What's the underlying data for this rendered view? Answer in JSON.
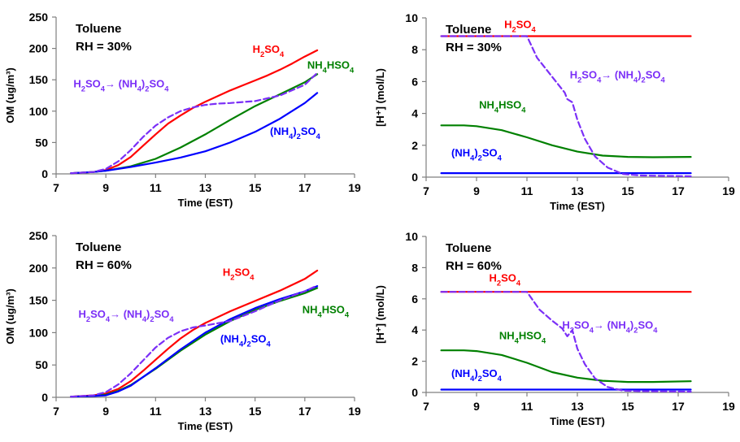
{
  "colors": {
    "h2so4": "#ff0000",
    "nh4hso4": "#008000",
    "nh42so4": "#0000ff",
    "transition": "#7b2ff7",
    "axis": "#7f7f7f",
    "text": "#000000"
  },
  "chart_data": [
    {
      "type": "line",
      "panel": "top-left",
      "title_lines": [
        "Toluene",
        "RH = 30%"
      ],
      "xlabel": "Time (EST)",
      "ylabel": "OM (ug/m³)",
      "xlim": [
        7,
        19
      ],
      "ylim": [
        0,
        250
      ],
      "xticks": [
        7,
        9,
        11,
        13,
        15,
        17,
        19
      ],
      "yticks": [
        0,
        50,
        100,
        150,
        200,
        250
      ],
      "grid": false,
      "series": [
        {
          "name": "H2SO4",
          "color_key": "h2so4",
          "dashed": false,
          "points": [
            [
              7.6,
              1
            ],
            [
              8.5,
              3
            ],
            [
              9,
              6
            ],
            [
              9.5,
              14
            ],
            [
              10,
              27
            ],
            [
              10.5,
              45
            ],
            [
              11,
              63
            ],
            [
              11.5,
              80
            ],
            [
              12,
              93
            ],
            [
              12.5,
              105
            ],
            [
              13,
              115
            ],
            [
              13.5,
              124
            ],
            [
              14,
              133
            ],
            [
              14.5,
              141
            ],
            [
              15,
              149
            ],
            [
              15.5,
              157
            ],
            [
              16,
              166
            ],
            [
              16.5,
              176
            ],
            [
              17,
              187
            ],
            [
              17.5,
              197
            ]
          ]
        },
        {
          "name": "NH4HSO4",
          "color_key": "nh4hso4",
          "dashed": false,
          "points": [
            [
              7.6,
              1
            ],
            [
              8.5,
              3
            ],
            [
              9,
              5
            ],
            [
              10,
              12
            ],
            [
              11,
              24
            ],
            [
              12,
              42
            ],
            [
              13,
              63
            ],
            [
              14,
              86
            ],
            [
              15,
              108
            ],
            [
              16,
              127
            ],
            [
              17,
              146
            ],
            [
              17.5,
              159
            ]
          ]
        },
        {
          "name": "(NH4)2SO4",
          "color_key": "nh42so4",
          "dashed": false,
          "points": [
            [
              7.6,
              1
            ],
            [
              8.5,
              3
            ],
            [
              9,
              5
            ],
            [
              10,
              11
            ],
            [
              11,
              18
            ],
            [
              12,
              26
            ],
            [
              13,
              36
            ],
            [
              14,
              50
            ],
            [
              15,
              67
            ],
            [
              16,
              88
            ],
            [
              17,
              113
            ],
            [
              17.5,
              129
            ]
          ]
        },
        {
          "name": "H2SO4→ (NH4)2SO4",
          "color_key": "transition",
          "dashed": true,
          "points": [
            [
              7.6,
              1
            ],
            [
              8.5,
              3
            ],
            [
              9,
              8
            ],
            [
              9.5,
              20
            ],
            [
              10,
              38
            ],
            [
              10.5,
              59
            ],
            [
              11,
              77
            ],
            [
              11.5,
              90
            ],
            [
              12,
              100
            ],
            [
              12.5,
              106
            ],
            [
              13,
              110
            ],
            [
              13.5,
              112
            ],
            [
              14,
              113
            ],
            [
              15,
              116
            ],
            [
              16,
              125
            ],
            [
              17,
              142
            ],
            [
              17.5,
              161
            ]
          ]
        }
      ],
      "labels": [
        {
          "series": "H2SO4",
          "text": "H2SO4",
          "color_key": "h2so4",
          "x": 14.9,
          "y": 193
        },
        {
          "series": "NH4HSO4",
          "text": "NH4HSO4",
          "color_key": "nh4hso4",
          "x": 17.1,
          "y": 168
        },
        {
          "series": "(NH4)2SO4",
          "text": "(NH4)2SO4",
          "color_key": "nh42so4",
          "x": 15.6,
          "y": 62
        },
        {
          "series": "H2SO4→ (NH4)2SO4",
          "text": "H2SO4→ (NH4)2SO4",
          "color_key": "transition",
          "x": 7.7,
          "y": 138
        }
      ]
    },
    {
      "type": "line",
      "panel": "top-right",
      "title_lines": [
        "Toluene",
        "RH = 30%"
      ],
      "xlabel": "Time (EST)",
      "ylabel": "[H⁺] (mol/L)",
      "xlim": [
        7,
        19
      ],
      "ylim": [
        0,
        10
      ],
      "xticks": [
        7,
        9,
        11,
        13,
        15,
        17,
        19
      ],
      "yticks": [
        0,
        2,
        4,
        6,
        8,
        10
      ],
      "grid": false,
      "series": [
        {
          "name": "H2SO4",
          "color_key": "h2so4",
          "dashed": false,
          "points": [
            [
              7.6,
              8.85
            ],
            [
              17.5,
              8.85
            ]
          ]
        },
        {
          "name": "NH4HSO4",
          "color_key": "nh4hso4",
          "dashed": false,
          "points": [
            [
              7.6,
              3.25
            ],
            [
              8.5,
              3.25
            ],
            [
              9,
              3.2
            ],
            [
              10,
              2.95
            ],
            [
              11,
              2.5
            ],
            [
              12,
              2.0
            ],
            [
              13,
              1.6
            ],
            [
              14,
              1.35
            ],
            [
              15,
              1.27
            ],
            [
              16,
              1.25
            ],
            [
              17.5,
              1.27
            ]
          ]
        },
        {
          "name": "(NH4)2SO4",
          "color_key": "nh42so4",
          "dashed": false,
          "points": [
            [
              7.6,
              0.25
            ],
            [
              17.5,
              0.25
            ]
          ]
        },
        {
          "name": "H2SO4→ (NH4)2SO4",
          "color_key": "transition",
          "dashed": true,
          "points": [
            [
              7.6,
              8.85
            ],
            [
              11,
              8.85
            ],
            [
              11.4,
              7.5
            ],
            [
              12,
              6.3
            ],
            [
              12.5,
              5.3
            ],
            [
              12.6,
              4.9
            ],
            [
              12.8,
              4.7
            ],
            [
              13,
              3.6
            ],
            [
              13.3,
              2.4
            ],
            [
              13.7,
              1.3
            ],
            [
              14.2,
              0.6
            ],
            [
              14.8,
              0.2
            ],
            [
              15.5,
              0.1
            ],
            [
              17.5,
              0.05
            ]
          ]
        }
      ],
      "labels": [
        {
          "series": "H2SO4",
          "text": "H2SO4",
          "color_key": "h2so4",
          "x": 10.1,
          "y": 9.35
        },
        {
          "series": "NH4HSO4",
          "text": "NH4HSO4",
          "color_key": "nh4hso4",
          "x": 9.1,
          "y": 4.3
        },
        {
          "series": "(NH4)2SO4",
          "text": "(NH4)2SO4",
          "color_key": "nh42so4",
          "x": 8.0,
          "y": 1.3
        },
        {
          "series": "H2SO4→ (NH4)2SO4",
          "text": "H2SO4→ (NH4)2SO4",
          "color_key": "transition",
          "x": 12.7,
          "y": 6.2
        }
      ]
    },
    {
      "type": "line",
      "panel": "bottom-left",
      "title_lines": [
        "Toluene",
        "RH = 60%"
      ],
      "xlabel": "Time (EST)",
      "ylabel": "OM (ug/m³)",
      "xlim": [
        7,
        19
      ],
      "ylim": [
        0,
        250
      ],
      "xticks": [
        7,
        9,
        11,
        13,
        15,
        17,
        19
      ],
      "yticks": [
        0,
        50,
        100,
        150,
        200,
        250
      ],
      "grid": false,
      "series": [
        {
          "name": "H2SO4",
          "color_key": "h2so4",
          "dashed": false,
          "points": [
            [
              7.6,
              1
            ],
            [
              8.5,
              3
            ],
            [
              9,
              6
            ],
            [
              9.5,
              13
            ],
            [
              10,
              25
            ],
            [
              10.5,
              41
            ],
            [
              11,
              58
            ],
            [
              11.5,
              75
            ],
            [
              12,
              91
            ],
            [
              12.5,
              104
            ],
            [
              13,
              115
            ],
            [
              14,
              133
            ],
            [
              15,
              149
            ],
            [
              16,
              165
            ],
            [
              17,
              183
            ],
            [
              17.5,
              196
            ]
          ]
        },
        {
          "name": "NH4HSO4",
          "color_key": "nh4hso4",
          "dashed": false,
          "points": [
            [
              7.6,
              1
            ],
            [
              8.5,
              2
            ],
            [
              9,
              4
            ],
            [
              9.5,
              10
            ],
            [
              10,
              19
            ],
            [
              11,
              44
            ],
            [
              12,
              72
            ],
            [
              13,
              97
            ],
            [
              14,
              118
            ],
            [
              15,
              135
            ],
            [
              16,
              149
            ],
            [
              17,
              161
            ],
            [
              17.5,
              169
            ]
          ]
        },
        {
          "name": "(NH4)2SO4",
          "color_key": "nh42so4",
          "dashed": false,
          "points": [
            [
              7.6,
              1
            ],
            [
              8.5,
              2
            ],
            [
              9,
              3
            ],
            [
              9.5,
              9
            ],
            [
              10,
              18
            ],
            [
              11,
              45
            ],
            [
              12,
              74
            ],
            [
              13,
              100
            ],
            [
              14,
              121
            ],
            [
              15,
              138
            ],
            [
              16,
              152
            ],
            [
              17,
              164
            ],
            [
              17.5,
              172
            ]
          ]
        },
        {
          "name": "H2SO4→ (NH4)2SO4",
          "color_key": "transition",
          "dashed": true,
          "points": [
            [
              7.6,
              1
            ],
            [
              8.5,
              3
            ],
            [
              9,
              8
            ],
            [
              9.5,
              20
            ],
            [
              10,
              37
            ],
            [
              10.5,
              57
            ],
            [
              11,
              77
            ],
            [
              11.5,
              92
            ],
            [
              12,
              102
            ],
            [
              12.5,
              108
            ],
            [
              13,
              111
            ],
            [
              14,
              118
            ],
            [
              15,
              133
            ],
            [
              16,
              150
            ],
            [
              17,
              164
            ],
            [
              17.5,
              173
            ]
          ]
        }
      ],
      "labels": [
        {
          "series": "H2SO4",
          "text": "H2SO4",
          "color_key": "h2so4",
          "x": 13.7,
          "y": 188
        },
        {
          "series": "NH4HSO4",
          "text": "NH4HSO4",
          "color_key": "nh4hso4",
          "x": 16.9,
          "y": 130
        },
        {
          "series": "(NH4)2SO4",
          "text": "(NH4)2SO4",
          "color_key": "nh42so4",
          "x": 13.6,
          "y": 85
        },
        {
          "series": "H2SO4→ (NH4)2SO4",
          "text": "H2SO4→ (NH4)2SO4",
          "color_key": "transition",
          "x": 7.9,
          "y": 123
        }
      ]
    },
    {
      "type": "line",
      "panel": "bottom-right",
      "title_lines": [
        "Toluene",
        "RH = 60%"
      ],
      "xlabel": "Time (EST)",
      "ylabel": "[H⁺] (mol/L)",
      "xlim": [
        7,
        19
      ],
      "ylim": [
        0,
        10
      ],
      "xticks": [
        7,
        9,
        11,
        13,
        15,
        17,
        19
      ],
      "yticks": [
        0,
        2,
        4,
        6,
        8,
        10
      ],
      "grid": false,
      "series": [
        {
          "name": "H2SO4",
          "color_key": "h2so4",
          "dashed": false,
          "points": [
            [
              7.6,
              6.45
            ],
            [
              17.5,
              6.45
            ]
          ]
        },
        {
          "name": "NH4HSO4",
          "color_key": "nh4hso4",
          "dashed": false,
          "points": [
            [
              7.6,
              2.7
            ],
            [
              8.5,
              2.7
            ],
            [
              9,
              2.65
            ],
            [
              10,
              2.4
            ],
            [
              11,
              1.9
            ],
            [
              12,
              1.3
            ],
            [
              13,
              0.95
            ],
            [
              14,
              0.75
            ],
            [
              15,
              0.67
            ],
            [
              16,
              0.67
            ],
            [
              17.5,
              0.72
            ]
          ]
        },
        {
          "name": "(NH4)2SO4",
          "color_key": "nh42so4",
          "dashed": false,
          "points": [
            [
              7.6,
              0.18
            ],
            [
              17.5,
              0.18
            ]
          ]
        },
        {
          "name": "H2SO4→ (NH4)2SO4",
          "color_key": "transition",
          "dashed": true,
          "points": [
            [
              7.6,
              6.45
            ],
            [
              11,
              6.45
            ],
            [
              11.5,
              5.3
            ],
            [
              12,
              4.6
            ],
            [
              12.4,
              4.1
            ],
            [
              12.6,
              3.6
            ],
            [
              12.8,
              4.0
            ],
            [
              13,
              2.8
            ],
            [
              13.3,
              1.8
            ],
            [
              13.7,
              0.9
            ],
            [
              14.2,
              0.35
            ],
            [
              14.8,
              0.12
            ],
            [
              15.5,
              0.08
            ],
            [
              17.5,
              0.05
            ]
          ]
        }
      ],
      "labels": [
        {
          "series": "H2SO4",
          "text": "H2SO4",
          "color_key": "h2so4",
          "x": 9.5,
          "y": 7.1
        },
        {
          "series": "NH4HSO4",
          "text": "NH4HSO4",
          "color_key": "nh4hso4",
          "x": 9.9,
          "y": 3.4
        },
        {
          "series": "(NH4)2SO4",
          "text": "(NH4)2SO4",
          "color_key": "nh42so4",
          "x": 8.0,
          "y": 1.0
        },
        {
          "series": "H2SO4→ (NH4)2SO4",
          "text": "H2SO4→ (NH4)2SO4",
          "color_key": "transition",
          "x": 12.4,
          "y": 4.1
        }
      ]
    }
  ]
}
